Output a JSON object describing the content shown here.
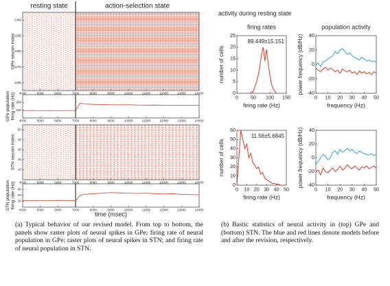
{
  "header": {
    "title": "activity during resting state",
    "columns": [
      "firing rates",
      "population activity"
    ]
  },
  "chart_data": [
    {
      "type": "raster",
      "ylabel": [
        "GPe neuron index"
      ],
      "color": "#f0604a",
      "annotations": [
        "resting state",
        "action-selection state"
      ],
      "vline": 7000,
      "xlim": [
        4000,
        14000
      ],
      "xticks": [
        4000,
        5000,
        6000,
        7000,
        8000,
        9000,
        10000,
        11000,
        12000,
        13000,
        14000
      ],
      "ylim": [
        1255,
        1305
      ],
      "yticks": [
        1260,
        1270,
        1280,
        1290,
        1300
      ]
    },
    {
      "type": "line",
      "ylabel": [
        "GPe population",
        "firing rate (Hz)"
      ],
      "vline": 7000,
      "xlim": [
        4000,
        14000
      ],
      "xticks": [
        4000,
        5000,
        6000,
        7000,
        8000,
        9000,
        10000,
        11000,
        12000,
        13000,
        14000
      ],
      "ylim": [
        0,
        300
      ],
      "yticks": [
        100,
        200
      ],
      "x": [
        4000,
        4500,
        5000,
        5500,
        6000,
        6500,
        7000,
        7250,
        7500,
        8000,
        8500,
        9000,
        9500,
        10000,
        10500,
        11000,
        11500,
        12000,
        12500,
        13000,
        13500,
        14000
      ],
      "series": [
        {
          "color": "#e8321e",
          "values": [
            95,
            97,
            94,
            96,
            95,
            96,
            95,
            190,
            180,
            175,
            172,
            170,
            168,
            170,
            166,
            165,
            166,
            164,
            163,
            162,
            163,
            162
          ]
        }
      ]
    },
    {
      "type": "raster",
      "ylabel": [
        "STN neuron index"
      ],
      "color": "#f0604a",
      "vline": 7000,
      "xlim": [
        4000,
        14000
      ],
      "xticks": [
        4000,
        5000,
        6000,
        7000,
        8000,
        9000,
        10000,
        11000,
        12000,
        13000,
        14000
      ],
      "ylim": [
        0,
        55
      ],
      "yticks": [
        10,
        20,
        30,
        40,
        50
      ]
    },
    {
      "type": "line",
      "ylabel": [
        "STN population",
        "firing rate (Hz)"
      ],
      "xlabel": "time (msec)",
      "vline": 7000,
      "xlim": [
        4000,
        14000
      ],
      "xticks": [
        4000,
        5000,
        6000,
        7000,
        8000,
        9000,
        10000,
        11000,
        12000,
        13000,
        14000
      ],
      "ylim": [
        0,
        80
      ],
      "yticks": [
        20,
        40,
        60
      ],
      "x": [
        4000,
        4500,
        5000,
        5500,
        6000,
        6500,
        7000,
        7250,
        7500,
        8000,
        8500,
        9000,
        9500,
        10000,
        10500,
        11000,
        11500,
        12000,
        12500,
        13000,
        13500,
        14000
      ],
      "series": [
        {
          "color": "#e8321e",
          "values": [
            22,
            23,
            22,
            22,
            23,
            22,
            22,
            40,
            44,
            46,
            48,
            50,
            49,
            48,
            47,
            48,
            46,
            45,
            46,
            44,
            43,
            42
          ]
        }
      ]
    },
    {
      "type": "line",
      "xlabel": "firing rate (Hz)",
      "ylabel": [
        "number of cells"
      ],
      "annotation": "89.449±15.151",
      "xlim": [
        0,
        150
      ],
      "xticks": [
        0,
        50,
        100,
        150
      ],
      "ylim": [
        0,
        25
      ],
      "yticks": [
        0,
        5,
        10,
        15,
        20,
        25
      ],
      "x": [
        40,
        50,
        55,
        60,
        65,
        70,
        75,
        80,
        85,
        90,
        95,
        100,
        105,
        110,
        115,
        120
      ],
      "series": [
        {
          "color": "#e8321e",
          "values": [
            0,
            1,
            3,
            5,
            8,
            12,
            17,
            20,
            14,
            19,
            13,
            8,
            4,
            2,
            1,
            0
          ]
        }
      ]
    },
    {
      "type": "line",
      "xlabel": "frequency (Hz)",
      "ylabel": [
        "power frequency (dB/Hz)"
      ],
      "xlim": [
        0,
        50
      ],
      "xticks": [
        0,
        10,
        20,
        30,
        40,
        50
      ],
      "ylim": [
        -40,
        40
      ],
      "yticks": [
        -40,
        -20,
        0,
        20,
        40
      ],
      "x": [
        0,
        2,
        4,
        6,
        8,
        10,
        12,
        14,
        16,
        18,
        20,
        22,
        24,
        26,
        28,
        30,
        32,
        34,
        36,
        38,
        40,
        42,
        44,
        46,
        48,
        50
      ],
      "series": [
        {
          "color": "#2a9fd8",
          "values": [
            0,
            2,
            -3,
            4,
            5,
            8,
            10,
            12,
            18,
            15,
            20,
            22,
            18,
            14,
            16,
            12,
            10,
            8,
            6,
            10,
            8,
            5,
            6,
            4,
            5,
            3
          ]
        },
        {
          "color": "#e8321e",
          "values": [
            -5,
            -8,
            -10,
            -6,
            -4,
            -8,
            -5,
            -7,
            -10,
            -8,
            -12,
            -6,
            -9,
            -10,
            -8,
            -12,
            -10,
            -14,
            -9,
            -12,
            -10,
            -13,
            -11,
            -14,
            -10,
            -12
          ]
        }
      ]
    },
    {
      "type": "line",
      "xlabel": "firing rate (Hz)",
      "ylabel": [
        "number of cells"
      ],
      "annotation": "11.56±5.6845",
      "xlim": [
        0,
        50
      ],
      "xticks": [
        0,
        10,
        20,
        30,
        40,
        50
      ],
      "ylim": [
        0,
        60
      ],
      "yticks": [
        0,
        10,
        20,
        30,
        40,
        50,
        60
      ],
      "x": [
        0,
        2,
        4,
        6,
        8,
        10,
        12,
        14,
        16,
        18,
        20,
        22,
        24,
        26,
        28,
        30,
        32,
        34,
        36,
        38,
        40,
        42,
        44,
        46,
        48,
        50
      ],
      "series": [
        {
          "color": "#e8321e",
          "values": [
            0,
            30,
            60,
            50,
            40,
            45,
            30,
            35,
            25,
            22,
            18,
            20,
            12,
            14,
            8,
            6,
            5,
            3,
            2,
            2,
            1,
            1,
            0,
            0,
            0,
            0
          ]
        }
      ]
    },
    {
      "type": "line",
      "xlabel": "frequency (Hz)",
      "ylabel": [
        "power frequency (dB/Hz)"
      ],
      "xlim": [
        0,
        50
      ],
      "xticks": [
        0,
        10,
        20,
        30,
        40,
        50
      ],
      "ylim": [
        -40,
        40
      ],
      "yticks": [
        -40,
        -20,
        0,
        20,
        40
      ],
      "x": [
        0,
        2,
        4,
        6,
        8,
        10,
        12,
        14,
        16,
        18,
        20,
        22,
        24,
        26,
        28,
        30,
        32,
        34,
        36,
        38,
        40,
        42,
        44,
        46,
        48,
        50
      ],
      "series": [
        {
          "color": "#2a9fd8",
          "values": [
            -10,
            -5,
            0,
            5,
            2,
            -3,
            0,
            8,
            10,
            5,
            12,
            8,
            10,
            14,
            10,
            12,
            8,
            6,
            10,
            8,
            6,
            5,
            4,
            6,
            3,
            5
          ]
        },
        {
          "color": "#e8321e",
          "values": [
            -20,
            -18,
            -25,
            -15,
            -20,
            -22,
            -18,
            -15,
            -20,
            -17,
            -12,
            -18,
            -15,
            -10,
            -14,
            -16,
            -12,
            -15,
            -18,
            -13,
            -15,
            -12,
            -16,
            -14,
            -12,
            -15
          ]
        }
      ]
    }
  ],
  "captions": {
    "a": "(a) Typical behavior of our revised model. From top to bottom, the panels show raster plots of neural spikes in GPe; firing rate of neural population in GPe; raster plots of neural spikes in STN; and firing rate of neural population in STN.",
    "b": "(b) Bastic statistics of neural activity in (top) GPe and (bottom) STN. The blue and red lines denote models before and after the revision, respectively."
  }
}
